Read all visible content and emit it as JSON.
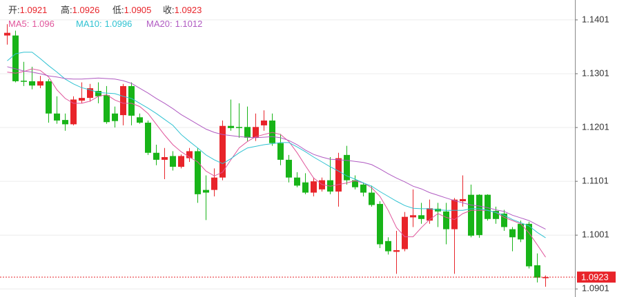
{
  "chart_data": {
    "type": "candlestick",
    "ohlc_labels": [
      "开:",
      "高:",
      "低:",
      "收:"
    ],
    "ylim": [
      1.0886,
      1.1438
    ],
    "yticks": [
      1.1401,
      1.1301,
      1.1201,
      1.1101,
      1.1001,
      1.0901
    ],
    "grid": true,
    "up_color": "#e8242a",
    "down_color": "#18b418",
    "open": [
      1.1372,
      1.1372,
      1.1288,
      1.1287,
      1.1279,
      1.1287,
      1.1227,
      1.1215,
      1.1207,
      1.1251,
      1.1256,
      1.1269,
      1.1261,
      1.1227,
      1.1224,
      1.1278,
      1.122,
      1.121,
      1.1154,
      1.1141,
      1.1148,
      1.1128,
      1.1144,
      1.1157,
      1.1085,
      1.1085,
      1.1108,
      1.1204,
      1.1202,
      1.1202,
      1.1182,
      1.1205,
      1.1214,
      1.1172,
      1.1141,
      1.1108,
      1.1099,
      1.108,
      1.1086,
      1.1103,
      1.1082,
      1.115,
      1.1103,
      1.1095,
      1.108,
      1.1059,
      1.099,
      1.097,
      1.0975,
      1.1034,
      1.1038,
      1.1028,
      1.105,
      1.1045,
      1.1012,
      1.1064,
      1.1076,
      1.1076,
      1.1076,
      1.1046,
      1.1041,
      1.1012,
      1.1022,
      1.1022,
      1.0945,
      1.0921
    ],
    "high": [
      1.1393,
      1.1381,
      1.1323,
      1.1314,
      1.1297,
      1.1291,
      1.1259,
      1.1227,
      1.1259,
      1.1285,
      1.1282,
      1.1285,
      1.1278,
      1.124,
      1.1282,
      1.1285,
      1.1227,
      1.1214,
      1.1169,
      1.1163,
      1.1157,
      1.1151,
      1.1163,
      1.1163,
      1.1112,
      1.1125,
      1.1214,
      1.1253,
      1.1246,
      1.124,
      1.1227,
      1.1233,
      1.1227,
      1.1189,
      1.115,
      1.1118,
      1.1116,
      1.1108,
      1.1108,
      1.1146,
      1.1154,
      1.1167,
      1.1112,
      1.1099,
      1.1093,
      1.1064,
      1.0997,
      1.1009,
      1.1044,
      1.1086,
      1.1061,
      1.1067,
      1.1061,
      1.1061,
      1.107,
      1.1112,
      1.1095,
      1.1077,
      1.1077,
      1.1054,
      1.1048,
      1.1016,
      1.1028,
      1.1026,
      1.0967,
      1.0926
    ],
    "low": [
      1.1355,
      1.1285,
      1.1278,
      1.1272,
      1.1274,
      1.121,
      1.1208,
      1.1195,
      1.1205,
      1.1246,
      1.1249,
      1.1246,
      1.1208,
      1.1201,
      1.1205,
      1.1205,
      1.1208,
      1.115,
      1.1131,
      1.1105,
      1.1121,
      1.1125,
      1.1137,
      1.1061,
      1.1029,
      1.1073,
      1.1103,
      1.1195,
      1.1182,
      1.1176,
      1.1176,
      1.1195,
      1.1167,
      1.1131,
      1.1099,
      1.109,
      1.1077,
      1.1073,
      1.1082,
      1.1077,
      1.1054,
      1.1095,
      1.1086,
      1.1073,
      1.1054,
      1.0977,
      1.0965,
      1.0929,
      1.0971,
      1.1016,
      1.1022,
      1.1022,
      1.1016,
      1.0984,
      1.0929,
      1.1054,
      1.0997,
      1.0996,
      1.1028,
      1.1022,
      1.1009,
      1.0971,
      1.0988,
      1.0939,
      1.0913,
      1.0905
    ],
    "close": [
      1.1377,
      1.1287,
      1.1286,
      1.1279,
      1.1287,
      1.1227,
      1.1214,
      1.1207,
      1.1253,
      1.1256,
      1.1274,
      1.1259,
      1.1211,
      1.1213,
      1.1278,
      1.1223,
      1.121,
      1.1154,
      1.1141,
      1.1146,
      1.1128,
      1.1148,
      1.1157,
      1.1077,
      1.108,
      1.1108,
      1.1204,
      1.12,
      1.12,
      1.1182,
      1.1202,
      1.1214,
      1.1172,
      1.1141,
      1.1108,
      1.1093,
      1.108,
      1.1101,
      1.1103,
      1.1082,
      1.1144,
      1.1103,
      1.109,
      1.108,
      1.1057,
      1.0984,
      1.0971,
      1.0973,
      1.1035,
      1.1038,
      1.1031,
      1.1051,
      1.1045,
      1.1012,
      1.1067,
      1.1068,
      1.1,
      1.1001,
      1.1031,
      1.1031,
      1.1016,
      1.0997,
      1.0993,
      1.0943,
      1.0922,
      1.0923
    ],
    "series": [
      {
        "name": "MA5:",
        "color": "#e0559b",
        "values": [
          1.1304,
          1.1302,
          1.1305,
          1.131,
          1.1307,
          1.1295,
          1.1271,
          1.1255,
          1.1246,
          1.1246,
          1.125,
          1.1259,
          1.1262,
          1.1252,
          1.1246,
          1.1246,
          1.124,
          1.1227,
          1.1207,
          1.1187,
          1.1169,
          1.1156,
          1.1146,
          1.1137,
          1.112,
          1.1111,
          1.1118,
          1.1141,
          1.1163,
          1.1175,
          1.1184,
          1.1188,
          1.1192,
          1.1188,
          1.1175,
          1.1154,
          1.113,
          1.1107,
          1.1095,
          1.1092,
          1.1095,
          1.1098,
          1.1102,
          1.1098,
          1.1089,
          1.1073,
          1.1047,
          1.1015,
          1.0998,
          1.0998,
          1.1015,
          1.103,
          1.1041,
          1.1034,
          1.103,
          1.1041,
          1.1047,
          1.1047,
          1.1047,
          1.1043,
          1.1034,
          1.1028,
          1.1022,
          1.1005,
          1.0983,
          1.096
        ]
      },
      {
        "name": "MA10:",
        "color": "#2fc2d2",
        "values": [
          1.1325,
          1.1338,
          1.1341,
          1.1341,
          1.1329,
          1.1316,
          1.1304,
          1.1291,
          1.1282,
          1.1275,
          1.1271,
          1.1266,
          1.1265,
          1.1264,
          1.1259,
          1.1255,
          1.1246,
          1.1237,
          1.1227,
          1.1216,
          1.1205,
          1.1188,
          1.1175,
          1.1163,
          1.115,
          1.1141,
          1.1134,
          1.1143,
          1.1154,
          1.1163,
          1.1166,
          1.1169,
          1.1171,
          1.1173,
          1.1173,
          1.1165,
          1.1156,
          1.1146,
          1.1137,
          1.1128,
          1.112,
          1.1111,
          1.1105,
          1.1098,
          1.1092,
          1.1082,
          1.1073,
          1.1064,
          1.1056,
          1.1051,
          1.105,
          1.105,
          1.1048,
          1.1047,
          1.1047,
          1.1047,
          1.105,
          1.105,
          1.1047,
          1.1043,
          1.1038,
          1.103,
          1.1024,
          1.1018,
          1.1006,
          1.0996
        ]
      },
      {
        "name": "MA20:",
        "color": "#b05ac2",
        "values": [
          1.1314,
          1.131,
          1.1306,
          1.1304,
          1.1301,
          1.1297,
          1.1295,
          1.1292,
          1.1291,
          1.1291,
          1.1292,
          1.1293,
          1.1292,
          1.1291,
          1.1288,
          1.1283,
          1.1274,
          1.1265,
          1.1255,
          1.1246,
          1.1236,
          1.1225,
          1.1216,
          1.1207,
          1.1198,
          1.1192,
          1.1188,
          1.1186,
          1.1184,
          1.1183,
          1.1182,
          1.1183,
          1.1184,
          1.1182,
          1.1177,
          1.1169,
          1.1159,
          1.1151,
          1.1146,
          1.1142,
          1.1141,
          1.114,
          1.1138,
          1.1136,
          1.1132,
          1.1124,
          1.1115,
          1.1107,
          1.11,
          1.1092,
          1.1087,
          1.108,
          1.1075,
          1.107,
          1.1065,
          1.1061,
          1.1057,
          1.1055,
          1.1052,
          1.1048,
          1.1045,
          1.1038,
          1.1033,
          1.1028,
          1.102,
          1.1012
        ]
      }
    ]
  }
}
